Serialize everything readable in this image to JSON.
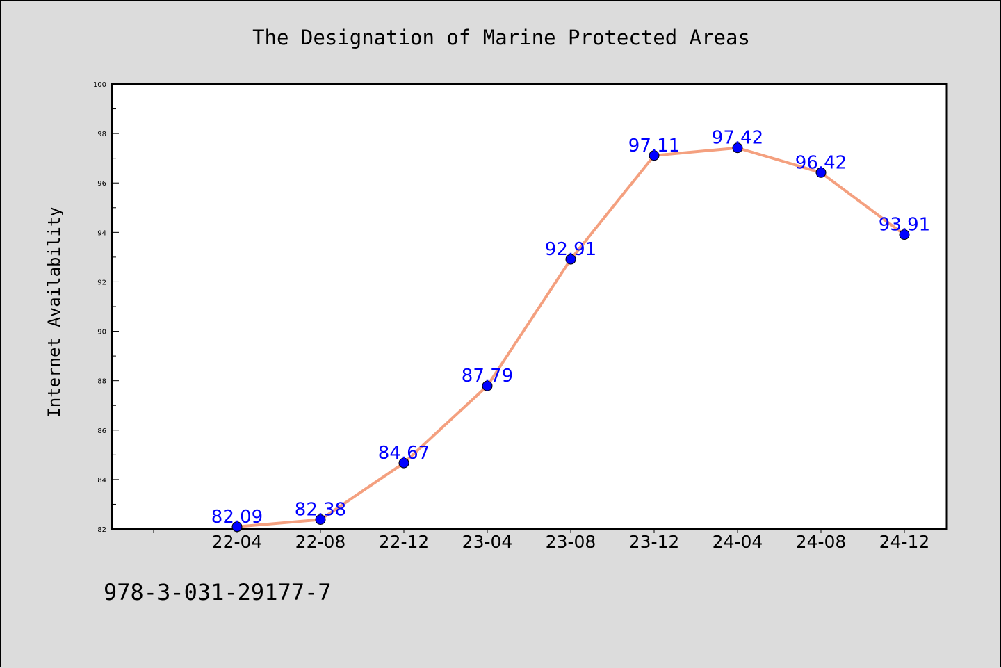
{
  "chart_data": {
    "type": "line",
    "title": "The Designation of Marine Protected Areas",
    "xlabel": "",
    "ylabel": "Internet Availability",
    "categories": [
      "22-04",
      "22-08",
      "22-12",
      "23-04",
      "23-08",
      "23-12",
      "24-04",
      "24-08",
      "24-12"
    ],
    "series": [
      {
        "values": [
          82.09,
          82.38,
          84.67,
          87.79,
          92.91,
          97.11,
          97.42,
          96.42,
          93.91
        ],
        "labels": [
          "82.09",
          "82.38",
          "84.67",
          "87.79",
          "92.91",
          "97.11",
          "97.42",
          "96.42",
          "93.91"
        ]
      }
    ],
    "ylim": [
      82,
      100
    ],
    "yticks": [
      "82",
      "84",
      "86",
      "88",
      "90",
      "92",
      "94",
      "96",
      "98",
      "100"
    ],
    "grid": false,
    "legend": "none",
    "line_color": "#f4a07f",
    "marker_color": "#0000ff",
    "label_color": "#0000ff"
  },
  "footer": {
    "isbn": "978-3-031-29177-7"
  }
}
